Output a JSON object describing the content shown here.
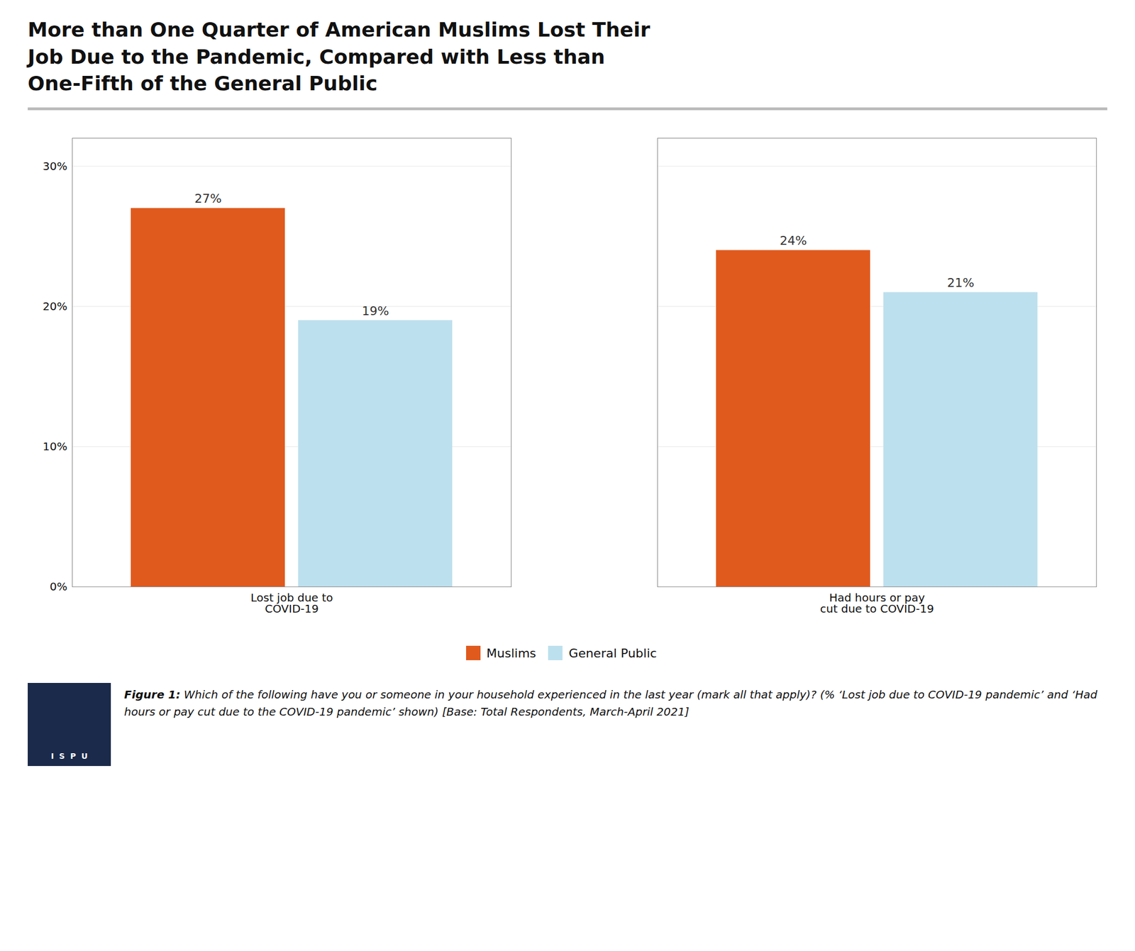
{
  "chart_data": {
    "type": "bar",
    "title": "More than One Quarter of American Muslims Lost Their\nJob Due to the Pandemic, Compared with Less than\nOne-Fifth of the General Public",
    "categories": [
      "Lost job due to\nCOVID-19",
      "Had hours or pay\ncut due to COVID-19"
    ],
    "series": [
      {
        "name": "Muslims",
        "color": "#E05A1E",
        "values": [
          27,
          24
        ],
        "value_labels": [
          "27%",
          "24%"
        ]
      },
      {
        "name": "General Public",
        "color": "#BDE0EE",
        "values": [
          19,
          21
        ],
        "value_labels": [
          "19%",
          "21%"
        ]
      }
    ],
    "ylim": [
      0,
      32
    ],
    "yticks": [
      {
        "value": 0,
        "label": "0%"
      },
      {
        "value": 10,
        "label": "10%"
      },
      {
        "value": 20,
        "label": "20%"
      },
      {
        "value": 30,
        "label": "30%"
      }
    ],
    "grid": true,
    "legend": "bottom",
    "data_labels": true,
    "caption_bold": "Figure 1:",
    "caption": " Which of the following have you or someone in your household experienced in the last year (mark all that apply)? (% ‘Lost job due to COVID-19 pandemic’ and ‘Had hours or pay cut due to the COVID-19 pandemic’ shown) [Base: Total Respondents, March-April 2021]",
    "logo_text": "I  S  P  U"
  }
}
